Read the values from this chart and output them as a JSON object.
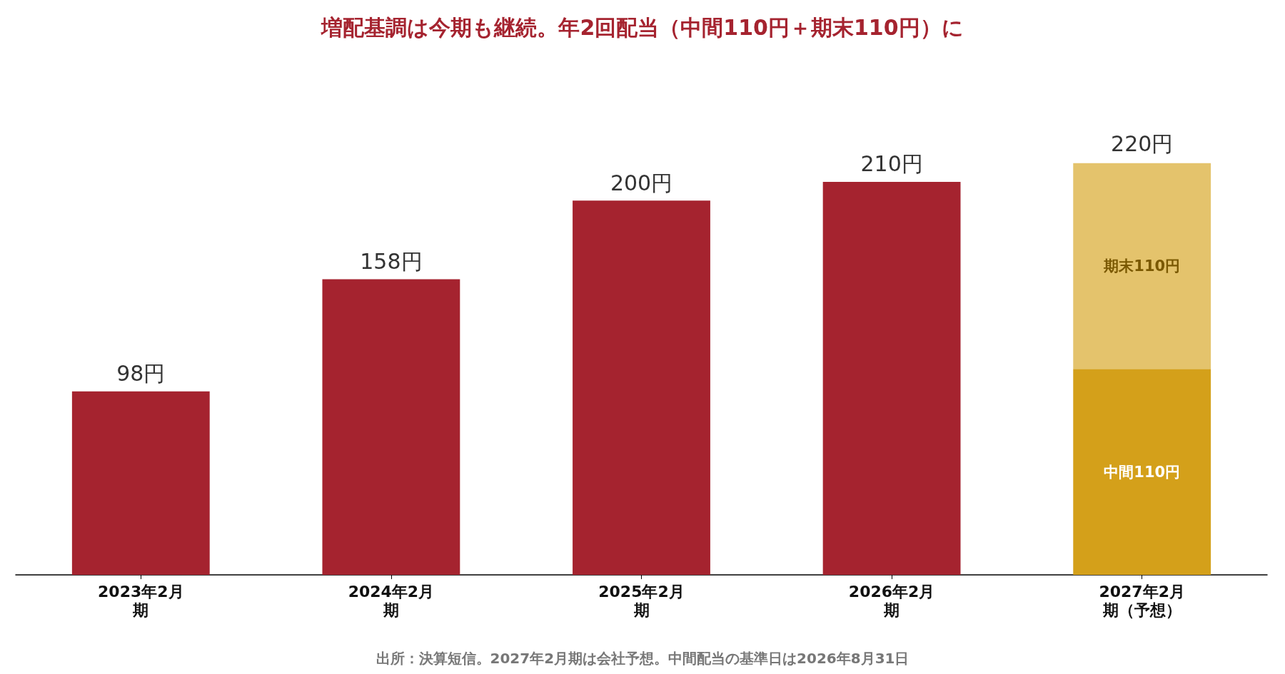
{
  "chart_data": {
    "type": "bar",
    "title": "増配基調は今期も継続。年2回配当（中間110円＋期末110円）に",
    "categories": [
      "2023年2月期",
      "2024年2月期",
      "2025年2月期",
      "2026年2月期",
      "2027年2月期（予想）"
    ],
    "stacked": true,
    "series": [
      {
        "color": "#a5232f",
        "values": [
          98,
          158,
          200,
          210,
          null
        ],
        "value_labels": [
          "98円",
          "158円",
          "200円",
          "210円",
          null
        ]
      },
      {
        "color": "#d4a01a",
        "values": [
          null,
          null,
          null,
          null,
          110
        ],
        "value_labels": [
          null,
          null,
          null,
          null,
          "中間110円"
        ]
      },
      {
        "color": "#e4c36c",
        "values": [
          null,
          null,
          null,
          null,
          110
        ],
        "value_labels": [
          null,
          null,
          null,
          null,
          "期末110円"
        ]
      }
    ],
    "totals": [
      null,
      null,
      null,
      null,
      "220円"
    ],
    "annotations": [
      "出所：決算短信。2027年2月期は会社予想。中間配当の基準日は2026年8月31日"
    ]
  }
}
